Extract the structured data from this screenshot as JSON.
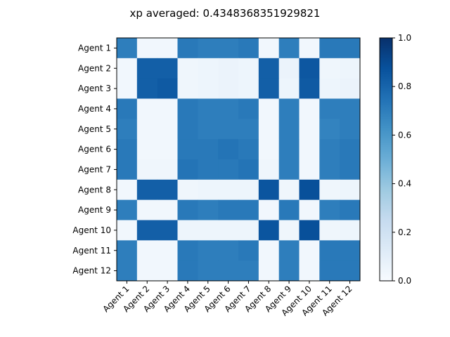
{
  "chart_data": {
    "type": "heatmap",
    "title": "xp averaged: 0.4348368351929821",
    "xlabel": "",
    "ylabel": "",
    "x_labels": [
      "Agent 1",
      "Agent 2",
      "Agent 3",
      "Agent 4",
      "Agent 5",
      "Agent 6",
      "Agent 7",
      "Agent 8",
      "Agent 9",
      "Agent 10",
      "Agent 11",
      "Agent 12"
    ],
    "y_labels": [
      "Agent 1",
      "Agent 2",
      "Agent 3",
      "Agent 4",
      "Agent 5",
      "Agent 6",
      "Agent 7",
      "Agent 8",
      "Agent 9",
      "Agent 10",
      "Agent 11",
      "Agent 12"
    ],
    "values": [
      [
        0.7,
        0.03,
        0.03,
        0.72,
        0.7,
        0.7,
        0.72,
        0.03,
        0.7,
        0.03,
        0.72,
        0.72
      ],
      [
        0.03,
        0.82,
        0.82,
        0.04,
        0.05,
        0.06,
        0.05,
        0.82,
        0.06,
        0.85,
        0.04,
        0.05
      ],
      [
        0.03,
        0.82,
        0.84,
        0.04,
        0.05,
        0.06,
        0.05,
        0.82,
        0.05,
        0.84,
        0.05,
        0.06
      ],
      [
        0.72,
        0.03,
        0.03,
        0.72,
        0.7,
        0.7,
        0.72,
        0.03,
        0.7,
        0.03,
        0.7,
        0.7
      ],
      [
        0.7,
        0.03,
        0.03,
        0.72,
        0.7,
        0.7,
        0.7,
        0.03,
        0.7,
        0.03,
        0.68,
        0.7
      ],
      [
        0.72,
        0.03,
        0.03,
        0.72,
        0.72,
        0.74,
        0.72,
        0.03,
        0.7,
        0.03,
        0.7,
        0.72
      ],
      [
        0.72,
        0.04,
        0.04,
        0.74,
        0.72,
        0.72,
        0.74,
        0.04,
        0.7,
        0.03,
        0.7,
        0.72
      ],
      [
        0.03,
        0.82,
        0.82,
        0.04,
        0.05,
        0.05,
        0.05,
        0.86,
        0.04,
        0.88,
        0.04,
        0.05
      ],
      [
        0.7,
        0.03,
        0.03,
        0.72,
        0.7,
        0.72,
        0.72,
        0.03,
        0.72,
        0.03,
        0.7,
        0.72
      ],
      [
        0.03,
        0.82,
        0.82,
        0.05,
        0.05,
        0.05,
        0.05,
        0.86,
        0.04,
        0.88,
        0.04,
        0.05
      ],
      [
        0.7,
        0.03,
        0.03,
        0.72,
        0.7,
        0.7,
        0.72,
        0.03,
        0.7,
        0.03,
        0.72,
        0.72
      ],
      [
        0.7,
        0.03,
        0.03,
        0.72,
        0.7,
        0.7,
        0.7,
        0.03,
        0.7,
        0.03,
        0.72,
        0.72
      ]
    ],
    "colormap": "Blues",
    "vmin": 0.0,
    "vmax": 1.0,
    "colorbar_ticks": [
      "0.0",
      "0.2",
      "0.4",
      "0.6",
      "0.8",
      "1.0"
    ]
  }
}
